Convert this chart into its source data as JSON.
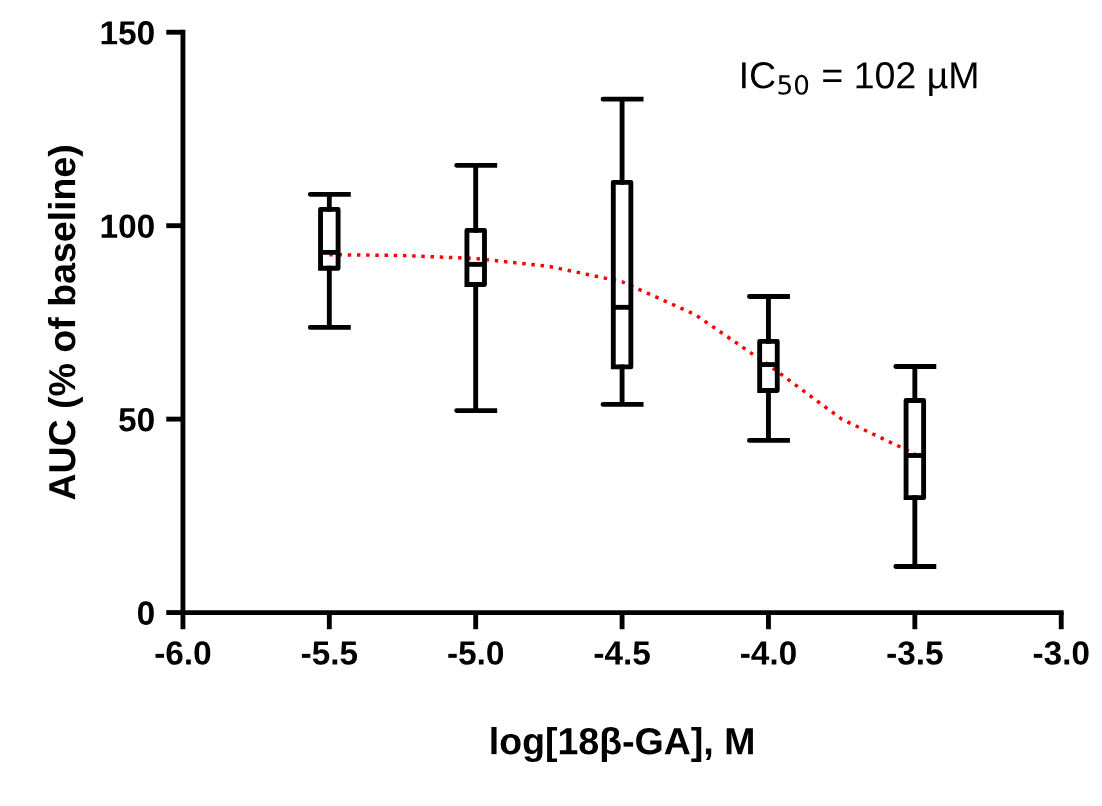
{
  "chart_data": {
    "type": "box",
    "xlabel": "log[18β-GA], M",
    "ylabel": "AUC (% of baseline)",
    "annotations": [
      "IC$_{50}$ = 102 µM"
    ],
    "x": [
      -5.5,
      -5.0,
      -4.5,
      -4.0,
      -3.5
    ],
    "color": "#000000",
    "boxes": [
      {
        "low": 73.7,
        "q1": 89,
        "median": 93.1,
        "q3": 104.2,
        "high": 108.1
      },
      {
        "low": 52.2,
        "q1": 84.8,
        "median": 90,
        "q3": 98.8,
        "high": 115.6
      },
      {
        "low": 53.8,
        "q1": 63.5,
        "median": 78.9,
        "q3": 111.2,
        "high": 132.7
      },
      {
        "low": 44.5,
        "q1": 57.4,
        "median": 64.1,
        "q3": 70.1,
        "high": 81.7
      },
      {
        "low": 11.9,
        "q1": 29.7,
        "median": 40.6,
        "q3": 54.8,
        "high": 63.6
      }
    ],
    "series": [
      {
        "type": "line",
        "color": "#ff0000",
        "line_style": "dotted",
        "x": [
          -5.5,
          -5.25,
          -5.0,
          -4.75,
          -4.5,
          -4.25,
          -4.0,
          -3.75,
          -3.5
        ],
        "values": [
          92.5,
          92.3,
          91.5,
          89.5,
          85.5,
          77,
          64,
          50,
          41
        ]
      }
    ],
    "xlim": [
      -6,
      -3
    ],
    "xticks": [
      {
        "value": -6,
        "label": "-6.0"
      },
      {
        "value": -5.5,
        "label": "-5.5"
      },
      {
        "value": -5,
        "label": "-5.0"
      },
      {
        "value": -4.5,
        "label": "-4.5"
      },
      {
        "value": -4,
        "label": "-4.0"
      },
      {
        "value": -3.5,
        "label": "-3.5"
      },
      {
        "value": -3,
        "label": "-3.0"
      }
    ],
    "ylim": [
      0,
      150
    ],
    "yticks": [
      0,
      50,
      100,
      150
    ],
    "grid": false,
    "legend": false
  }
}
